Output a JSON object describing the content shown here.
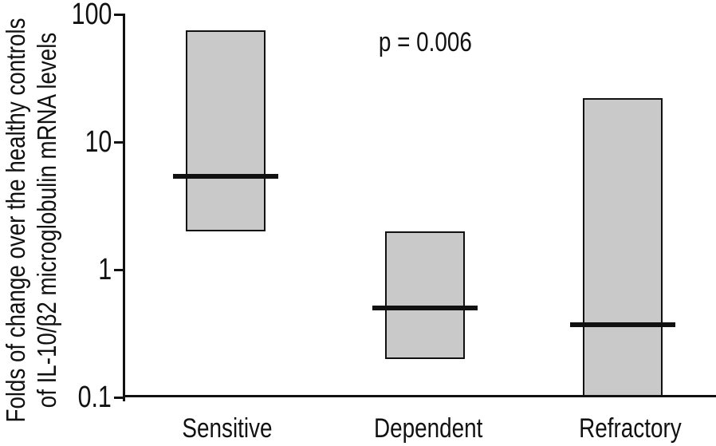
{
  "figure": {
    "background": "#ffffff"
  },
  "chart_data": {
    "type": "box",
    "y_scale": "log",
    "ylim": [
      0.1,
      100
    ],
    "grid": false,
    "legend": "none",
    "ylabel": "Folds of change over the healthy controls of IL-10/β2 microglobulin mRNA levels",
    "ylabel_line1": "Folds of change over the healthy controls",
    "ylabel_line2": "of IL-10/β2 microglobulin mRNA levels",
    "xlabel": "",
    "y_ticks": [
      {
        "label": "100",
        "value": 100
      },
      {
        "label": "10",
        "value": 10
      },
      {
        "label": "1",
        "value": 1
      },
      {
        "label": "0.1",
        "value": 0.1
      }
    ],
    "categories": [
      "Sensitive",
      "Dependent",
      "Refractory"
    ],
    "series": [
      {
        "category": "Sensitive",
        "min": 2,
        "median": 5.4,
        "max": 75,
        "clipped_at_axis": false
      },
      {
        "category": "Dependent",
        "min": 0.2,
        "median": 0.5,
        "max": 2,
        "clipped_at_axis": false
      },
      {
        "category": "Refractory",
        "min": 0.1,
        "median": 0.37,
        "max": 22,
        "clipped_at_axis": true
      }
    ],
    "annotation": {
      "text": "p = 0.006"
    },
    "colors": {
      "box_fill": "#c9c9c9",
      "box_border": "#111111",
      "median": "#111111",
      "axis": "#111111",
      "text": "#111111"
    }
  }
}
